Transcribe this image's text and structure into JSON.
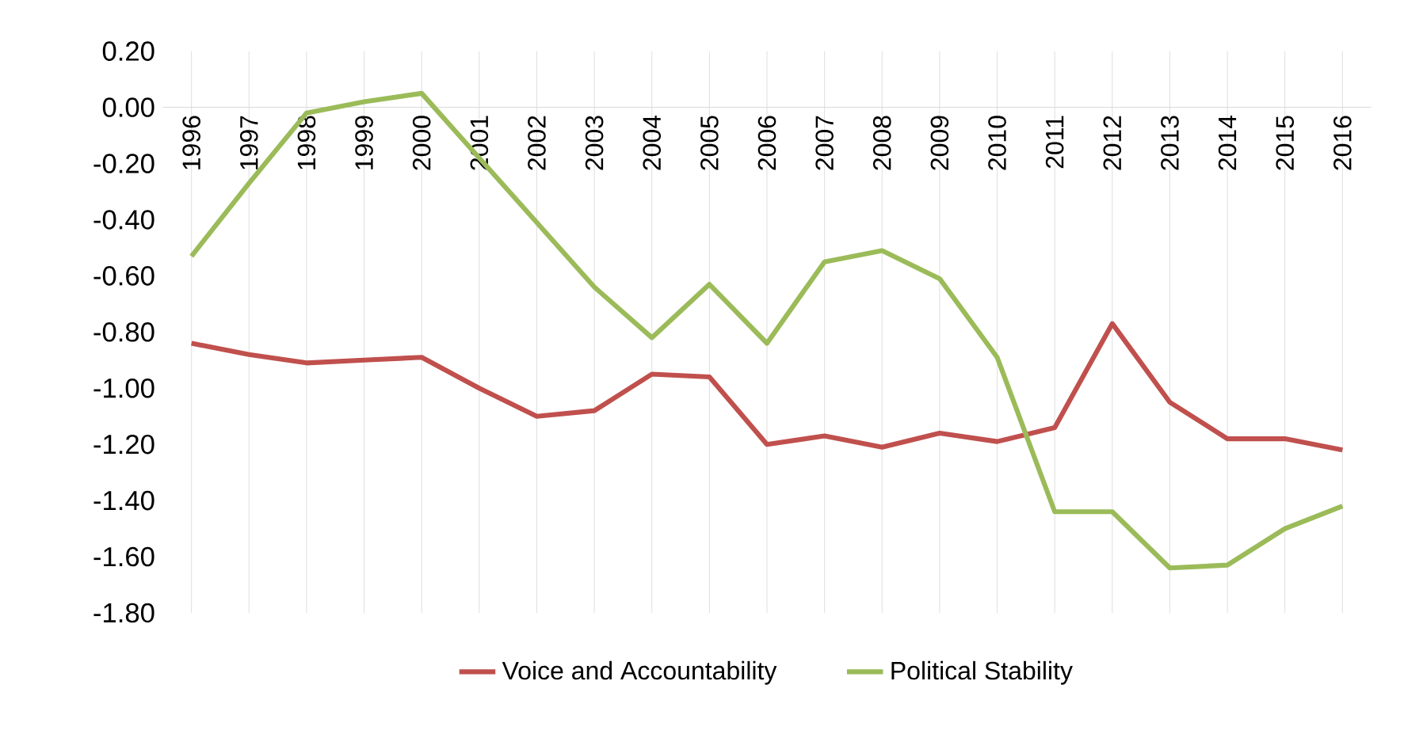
{
  "chart_data": {
    "type": "line",
    "categories": [
      "1996",
      "1997",
      "1998",
      "1999",
      "2000",
      "2001",
      "2002",
      "2003",
      "2004",
      "2005",
      "2006",
      "2007",
      "2008",
      "2009",
      "2010",
      "2011",
      "2012",
      "2013",
      "2014",
      "2015",
      "2016"
    ],
    "series": [
      {
        "name": "Voice and Accountability",
        "color": "#c0504d",
        "values": [
          -0.84,
          -0.88,
          -0.91,
          -0.9,
          -0.89,
          -1.0,
          -1.1,
          -1.08,
          -0.95,
          -0.96,
          -1.2,
          -1.17,
          -1.21,
          -1.16,
          -1.19,
          -1.14,
          -0.77,
          -1.05,
          -1.18,
          -1.18,
          -1.22
        ]
      },
      {
        "name": "Political Stability",
        "color": "#9bbb59",
        "values": [
          -0.53,
          -0.27,
          -0.02,
          0.02,
          0.05,
          -0.18,
          -0.41,
          -0.64,
          -0.82,
          -0.63,
          -0.84,
          -0.55,
          -0.51,
          -0.61,
          -0.89,
          -1.44,
          -1.44,
          -1.64,
          -1.63,
          -1.5,
          -1.42
        ]
      }
    ],
    "ylim": [
      -1.8,
      0.2
    ],
    "yticks": [
      {
        "value": 0.2,
        "label": "0.20"
      },
      {
        "value": 0,
        "label": "0.00"
      },
      {
        "value": -0.2,
        "label": "-0.20"
      },
      {
        "value": -0.4,
        "label": "-0.40"
      },
      {
        "value": -0.6,
        "label": "-0.60"
      },
      {
        "value": -0.8,
        "label": "-0.80"
      },
      {
        "value": -1.0,
        "label": "-1.00"
      },
      {
        "value": -1.2,
        "label": "-1.20"
      },
      {
        "value": -1.4,
        "label": "-1.40"
      },
      {
        "value": -1.6,
        "label": "-1.60"
      },
      {
        "value": -1.8,
        "label": "-1.80"
      }
    ],
    "grid": "x",
    "legend": "bottom",
    "line_style": "solid",
    "marker": "none"
  }
}
